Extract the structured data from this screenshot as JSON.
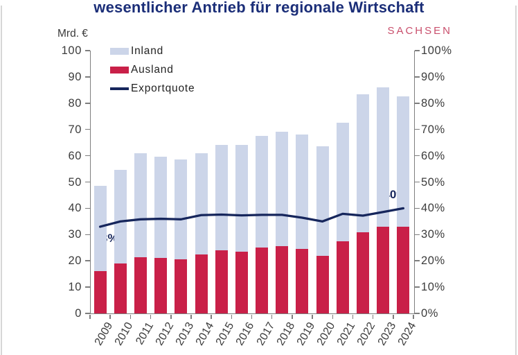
{
  "page": {
    "background": "#ffffff",
    "edge_line_color": "#d6d6d6"
  },
  "header": {
    "title": "wesentlicher Antrieb für regionale Wirtschaft",
    "title_color": "#1b2e78",
    "brand": "SACHSEN",
    "brand_color": "#c94f6c"
  },
  "chart_data": {
    "type": "bar",
    "subtype": "stacked-bars-with-line-overlay",
    "unit_label": "Mrd. €",
    "categories": [
      "2009",
      "2010",
      "2011",
      "2012",
      "2013",
      "2014",
      "2015",
      "2016",
      "2017",
      "2018",
      "2019",
      "2020",
      "2021",
      "2022",
      "2023",
      "2024"
    ],
    "series": [
      {
        "name": "Inland",
        "type": "bar",
        "color": "#ccd5e9",
        "values": [
          32.5,
          35.5,
          39.5,
          38.5,
          38,
          38.5,
          40,
          40.5,
          42.5,
          43.5,
          43.5,
          41.5,
          45,
          52.5,
          53,
          49.5
        ]
      },
      {
        "name": "Ausland",
        "type": "bar",
        "color": "#c92048",
        "values": [
          16,
          19,
          21.5,
          21,
          20.5,
          22.5,
          24,
          23.5,
          25,
          25.5,
          24.5,
          22,
          27.5,
          31,
          33,
          33
        ]
      },
      {
        "name": "Exportquote",
        "type": "line",
        "color": "#16265c",
        "axis": "right",
        "values": [
          33,
          35,
          35.8,
          36,
          35.8,
          37.4,
          37.6,
          37.3,
          37.5,
          37.5,
          36.4,
          35,
          37.9,
          37.2,
          38.6,
          40
        ]
      }
    ],
    "stack_order": [
      "Ausland",
      "Inland"
    ],
    "bar_totals": [
      48.5,
      54.5,
      61,
      59.5,
      58.5,
      61,
      64,
      64,
      67.5,
      69,
      68,
      63.5,
      72.5,
      83.5,
      86,
      82.5
    ],
    "axes": {
      "left": {
        "range": [
          0,
          100
        ],
        "step": 10,
        "ticks": [
          "0",
          "10",
          "20",
          "30",
          "40",
          "50",
          "60",
          "70",
          "80",
          "90",
          "100"
        ]
      },
      "right": {
        "range": [
          0,
          100
        ],
        "step": 10,
        "ticks": [
          "0%",
          "10%",
          "20%",
          "30%",
          "40%",
          "50%",
          "60%",
          "70%",
          "80%",
          "90%",
          "100%"
        ]
      }
    },
    "grid": false,
    "legend": {
      "position": "top-left-inside",
      "items": [
        "Inland",
        "Ausland",
        "Exportquote"
      ]
    },
    "annotations": [
      {
        "text": "33%",
        "series": "Exportquote",
        "category": "2009",
        "value": 33,
        "placement": "below"
      },
      {
        "text": "40%",
        "series": "Exportquote",
        "category": "2024",
        "value": 40,
        "placement": "above-left"
      }
    ],
    "axis_color": "#7d7d7d",
    "tick_label_color": "#3c3c3c"
  }
}
